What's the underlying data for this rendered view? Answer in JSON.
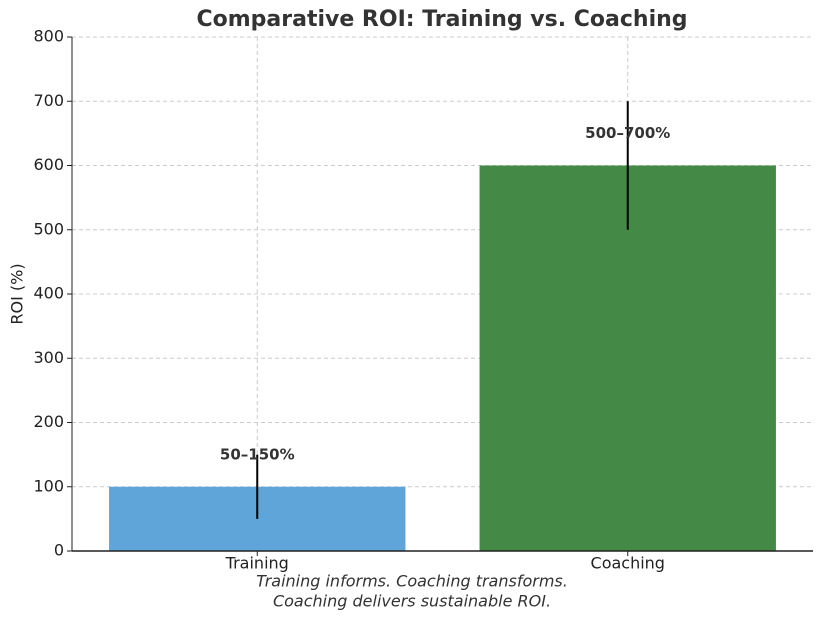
{
  "chart_data": {
    "type": "bar",
    "title": "Comparative ROI: Training vs. Coaching",
    "ylabel": "ROI (%)",
    "categories": [
      "Training",
      "Coaching"
    ],
    "values": [
      100,
      600
    ],
    "errors": [
      50,
      100
    ],
    "annotations": [
      "50–150%",
      "500–700%"
    ],
    "colors": [
      "#5fa5d9",
      "#448a46"
    ],
    "ylim": [
      0,
      800
    ],
    "yticks": [
      0,
      100,
      200,
      300,
      400,
      500,
      600,
      700,
      800
    ],
    "grid": true,
    "caption": [
      "Training informs. Coaching transforms.",
      "Coaching delivers sustainable ROI."
    ]
  }
}
